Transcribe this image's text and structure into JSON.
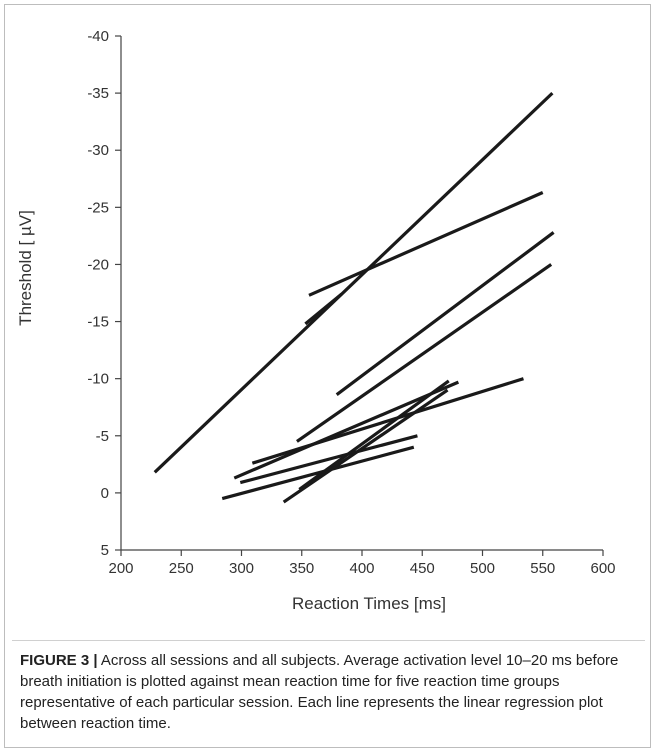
{
  "chart_data": {
    "type": "line",
    "title": "",
    "xlabel": "Reaction Times [ms]",
    "ylabel": "Threshold [ µV]",
    "xlim": [
      200,
      600
    ],
    "ylim": [
      5,
      -40
    ],
    "y_axis_inverted": true,
    "x_ticks": [
      200,
      250,
      300,
      350,
      400,
      450,
      500,
      550,
      600
    ],
    "x_tick_labels": [
      "200",
      "250",
      "300",
      "350",
      "400",
      "450",
      "500",
      "550",
      "600"
    ],
    "y_ticks": [
      -40,
      -35,
      -30,
      -25,
      -20,
      -15,
      -10,
      -5,
      0,
      5
    ],
    "y_tick_labels": [
      "-40",
      "-35",
      "-30",
      "-25",
      "-20",
      "-15",
      "-10",
      "-5",
      "0",
      "5"
    ],
    "grid": false,
    "legend": false,
    "series": [
      {
        "x": [
          228,
          558
        ],
        "y": [
          -1.8,
          -35.0
        ]
      },
      {
        "x": [
          353,
          383
        ],
        "y": [
          -14.8,
          -17.4
        ]
      },
      {
        "x": [
          356,
          550
        ],
        "y": [
          -17.3,
          -26.3
        ]
      },
      {
        "x": [
          379,
          559
        ],
        "y": [
          -8.6,
          -22.8
        ]
      },
      {
        "x": [
          346,
          557
        ],
        "y": [
          -4.5,
          -20.0
        ]
      },
      {
        "x": [
          309,
          534
        ],
        "y": [
          -2.6,
          -10.0
        ]
      },
      {
        "x": [
          294,
          480
        ],
        "y": [
          -1.3,
          -9.7
        ]
      },
      {
        "x": [
          348,
          472
        ],
        "y": [
          -0.3,
          -9.8
        ]
      },
      {
        "x": [
          335,
          471
        ],
        "y": [
          0.8,
          -9.0
        ]
      },
      {
        "x": [
          299,
          446
        ],
        "y": [
          -0.9,
          -5.0
        ]
      },
      {
        "x": [
          284,
          443
        ],
        "y": [
          0.5,
          -4.0
        ]
      }
    ]
  },
  "caption": {
    "label": "FIGURE 3 |",
    "text": " Across all sessions and all subjects. Average activation level 10–20 ms before breath initiation is plotted against mean reaction time for five reaction time groups representative of each particular session. Each line represents the linear regression plot between reaction time."
  }
}
